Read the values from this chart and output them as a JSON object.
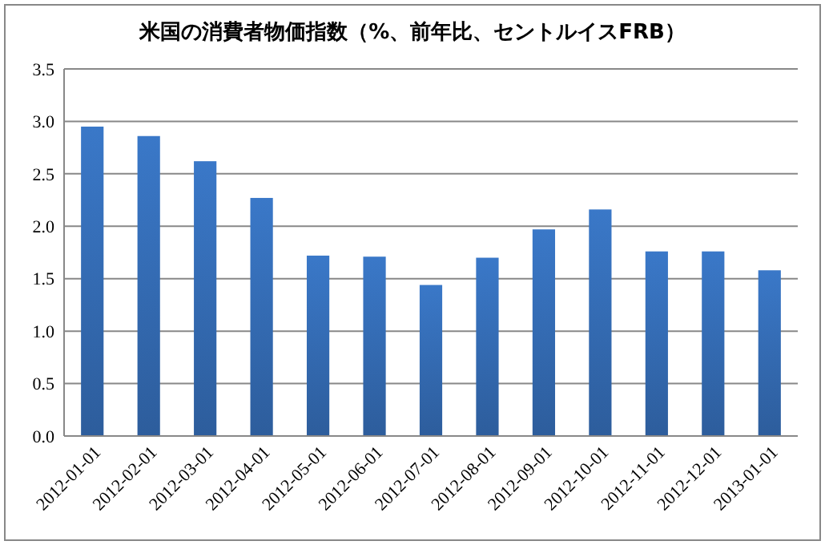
{
  "chart_data": {
    "type": "bar",
    "title": "米国の消費者物価指数（%、前年比、セントルイスFRB）",
    "categories": [
      "2012-01-01",
      "2012-02-01",
      "2012-03-01",
      "2012-04-01",
      "2012-05-01",
      "2012-06-01",
      "2012-07-01",
      "2012-08-01",
      "2012-09-01",
      "2012-10-01",
      "2012-11-01",
      "2012-12-01",
      "2013-01-01"
    ],
    "values": [
      2.95,
      2.86,
      2.62,
      2.27,
      1.72,
      1.71,
      1.44,
      1.7,
      1.97,
      2.16,
      1.76,
      1.76,
      1.58
    ],
    "color": "#3a78c8",
    "ylim": [
      0,
      3.5
    ],
    "yticks": [
      {
        "value": 0,
        "label": "0.0"
      },
      {
        "value": 0.5,
        "label": "0.5"
      },
      {
        "value": 1,
        "label": "1.0"
      },
      {
        "value": 1.5,
        "label": "1.5"
      },
      {
        "value": 2,
        "label": "2.0"
      },
      {
        "value": 2.5,
        "label": "2.5"
      },
      {
        "value": 3,
        "label": "3.0"
      },
      {
        "value": 3.5,
        "label": "3.5"
      }
    ],
    "grid": "y"
  }
}
